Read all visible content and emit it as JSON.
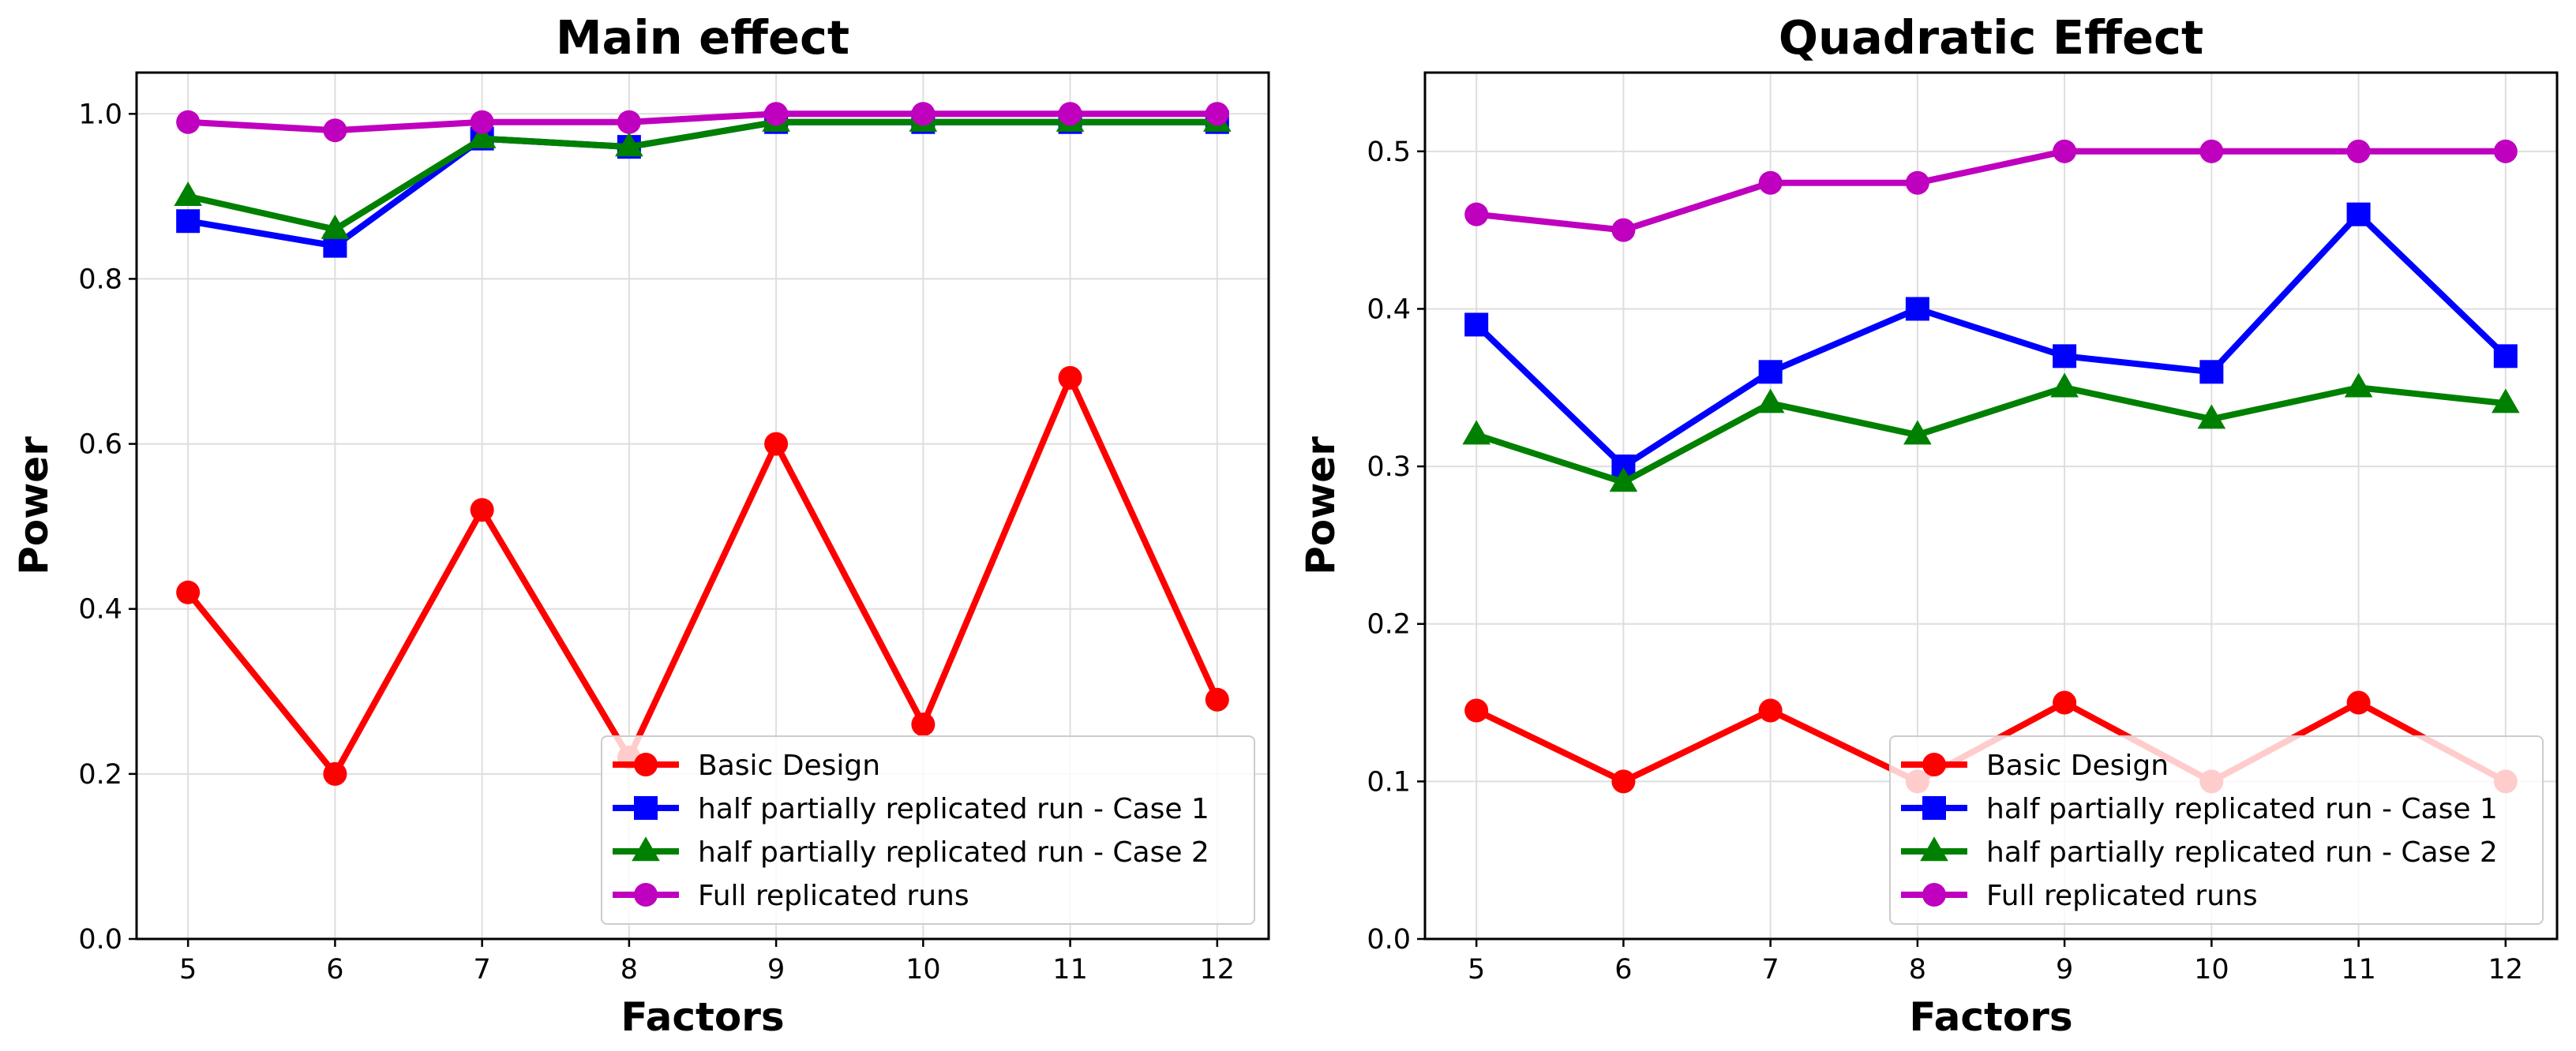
{
  "chart_data": [
    {
      "type": "line",
      "title": "Main effect",
      "xlabel": "Factors",
      "ylabel": "Power",
      "x": [
        5,
        6,
        7,
        8,
        9,
        10,
        11,
        12
      ],
      "x_tick_labels": [
        "5",
        "6",
        "7",
        "8",
        "9",
        "10",
        "11",
        "12"
      ],
      "xlim": [
        4.65,
        12.35
      ],
      "ylim": [
        0,
        1.05
      ],
      "y_ticks": [
        0.0,
        0.2,
        0.4,
        0.6,
        0.8,
        1.0
      ],
      "y_tick_labels": [
        "0.0",
        "0.2",
        "0.4",
        "0.6",
        "0.8",
        "1.0"
      ],
      "grid": true,
      "legend_position": "lower-right",
      "series": [
        {
          "name": "Basic Design",
          "color": "#ff0000",
          "marker": "circle",
          "values": [
            0.42,
            0.2,
            0.52,
            0.22,
            0.6,
            0.26,
            0.68,
            0.29
          ]
        },
        {
          "name": "half partially replicated run - Case 1",
          "color": "#0000ff",
          "marker": "square",
          "values": [
            0.87,
            0.84,
            0.97,
            0.96,
            0.99,
            0.99,
            0.99,
            0.99
          ]
        },
        {
          "name": "half partially replicated run - Case 2",
          "color": "#008000",
          "marker": "triangle",
          "values": [
            0.9,
            0.86,
            0.97,
            0.96,
            0.99,
            0.99,
            0.99,
            0.99
          ]
        },
        {
          "name": "Full replicated runs",
          "color": "#bf00bf",
          "marker": "circle",
          "values": [
            0.99,
            0.98,
            0.99,
            0.99,
            1.0,
            1.0,
            1.0,
            1.0
          ]
        }
      ]
    },
    {
      "type": "line",
      "title": "Quadratic Effect",
      "xlabel": "Factors",
      "ylabel": "Power",
      "x": [
        5,
        6,
        7,
        8,
        9,
        10,
        11,
        12
      ],
      "x_tick_labels": [
        "5",
        "6",
        "7",
        "8",
        "9",
        "10",
        "11",
        "12"
      ],
      "xlim": [
        4.65,
        12.35
      ],
      "ylim": [
        0,
        0.55
      ],
      "y_ticks": [
        0.0,
        0.1,
        0.2,
        0.3,
        0.4,
        0.5
      ],
      "y_tick_labels": [
        "0.0",
        "0.1",
        "0.2",
        "0.3",
        "0.4",
        "0.5"
      ],
      "grid": true,
      "legend_position": "lower-right",
      "series": [
        {
          "name": "Basic Design",
          "color": "#ff0000",
          "marker": "circle",
          "values": [
            0.145,
            0.1,
            0.145,
            0.1,
            0.15,
            0.1,
            0.15,
            0.1
          ]
        },
        {
          "name": "half partially replicated run - Case 1",
          "color": "#0000ff",
          "marker": "square",
          "values": [
            0.39,
            0.3,
            0.36,
            0.4,
            0.37,
            0.36,
            0.46,
            0.37
          ]
        },
        {
          "name": "half partially replicated run - Case 2",
          "color": "#008000",
          "marker": "triangle",
          "values": [
            0.32,
            0.29,
            0.34,
            0.32,
            0.35,
            0.33,
            0.35,
            0.34
          ]
        },
        {
          "name": "Full replicated runs",
          "color": "#bf00bf",
          "marker": "circle",
          "values": [
            0.46,
            0.45,
            0.48,
            0.48,
            0.5,
            0.5,
            0.5,
            0.5
          ]
        }
      ]
    }
  ]
}
